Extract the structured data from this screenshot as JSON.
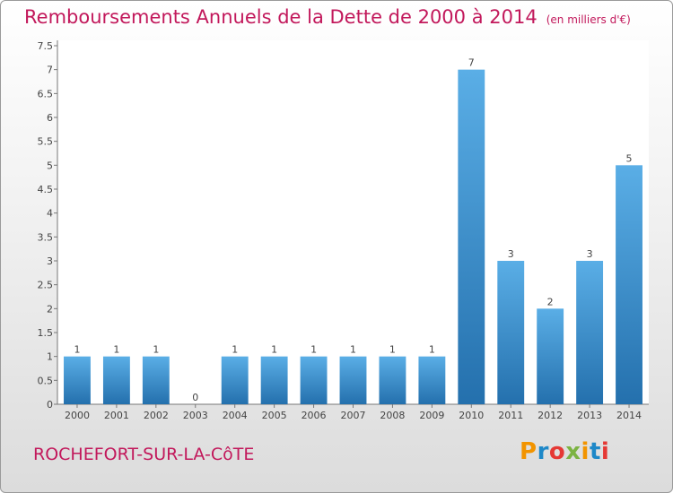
{
  "title": "Remboursements Annuels de la Dette de 2000 à 2014",
  "subtitle": "(en milliers d'€)",
  "place_name": "ROCHEFORT-SUR-LA-CôTE",
  "logo": {
    "letters": [
      "P",
      "r",
      "o",
      "x",
      "i",
      "t",
      "i"
    ],
    "colors": [
      "#f29400",
      "#1e88c8",
      "#e53935",
      "#7cb342",
      "#f29400",
      "#1e88c8",
      "#e53935"
    ]
  },
  "colors": {
    "bar": "#3a8fd1",
    "bar_light": "#5aaee6",
    "bar_dark": "#2470ad",
    "title": "#c2185b"
  },
  "chart_data": {
    "type": "bar",
    "categories": [
      "2000",
      "2001",
      "2002",
      "2003",
      "2004",
      "2005",
      "2006",
      "2007",
      "2008",
      "2009",
      "2010",
      "2011",
      "2012",
      "2013",
      "2014"
    ],
    "values": [
      1,
      1,
      1,
      0,
      1,
      1,
      1,
      1,
      1,
      1,
      7,
      3,
      2,
      3,
      5
    ],
    "data_labels": [
      "1",
      "1",
      "1",
      "0",
      "1",
      "1",
      "1",
      "1",
      "1",
      "1",
      "7",
      "3",
      "2",
      "3",
      "5"
    ],
    "y_ticks": [
      0,
      0.5,
      1,
      1.5,
      2,
      2.5,
      3,
      3.5,
      4,
      4.5,
      5,
      5.5,
      6,
      6.5,
      7,
      7.5
    ],
    "y_tick_labels": [
      "0",
      "0.5",
      "1",
      "1.5",
      "2",
      "2.5",
      "3",
      "3.5",
      "4",
      "4.5",
      "5",
      "5.5",
      "6",
      "6.5",
      "7",
      "7.5"
    ],
    "ylim": [
      0,
      7.5
    ],
    "xlabel": "",
    "ylabel": "",
    "grid": false
  }
}
